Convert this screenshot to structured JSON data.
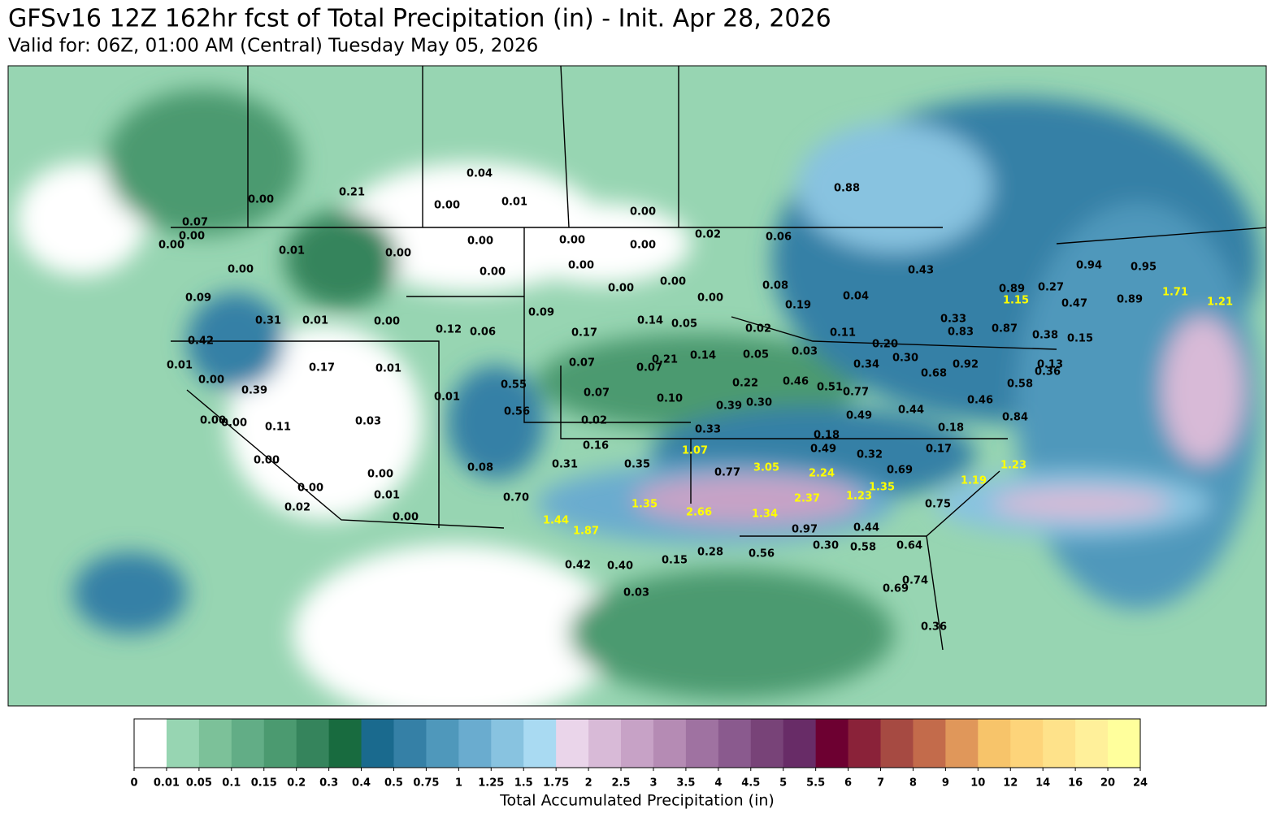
{
  "header": {
    "title": "GFSv16 12Z 162hr fcst of Total Precipitation (in) - Init. Apr 28, 2026",
    "subtitle": "Valid for: 06Z, 01:00 AM (Central) Tuesday May 05, 2026"
  },
  "colorbar": {
    "label": "Total Accumulated Precipitation (in)",
    "levels": [
      0,
      0.01,
      0.05,
      0.1,
      0.15,
      0.2,
      0.3,
      0.4,
      0.5,
      0.75,
      1,
      1.25,
      1.5,
      1.75,
      2,
      2.5,
      3,
      3.5,
      4,
      4.5,
      5,
      5.5,
      6,
      7,
      8,
      9,
      10,
      12,
      14,
      16,
      20,
      24
    ],
    "colors": [
      "#ffffff",
      "#97d5b2",
      "#7cc199",
      "#62ad86",
      "#4b9a70",
      "#35845c",
      "#186b3f",
      "#1a6a8e",
      "#3580a6",
      "#4f98bb",
      "#6aaccf",
      "#88c3e0",
      "#a9daf2",
      "#ead5ea",
      "#d8bad7",
      "#c7a2c6",
      "#b58bb4",
      "#9f72a1",
      "#8a5a8e",
      "#784378",
      "#682c67",
      "#6d0031",
      "#8a2239",
      "#a64a42",
      "#c36b4b",
      "#e0975a",
      "#f7c46a",
      "#fdd47a",
      "#fee28a",
      "#fff09a",
      "#ffff9c"
    ]
  },
  "map_labels": [
    {
      "text": "0.04",
      "color": "#000"
    },
    {
      "text": "0.00",
      "color": "#000"
    },
    {
      "text": "0.01",
      "color": "#000"
    },
    {
      "text": "0.00",
      "color": "#000"
    },
    {
      "text": "0.21",
      "color": "#000"
    },
    {
      "text": "0.00",
      "color": "#000"
    },
    {
      "text": "0.07",
      "color": "#000"
    },
    {
      "text": "0.00",
      "color": "#000"
    },
    {
      "text": "0.00",
      "color": "#000"
    },
    {
      "text": "0.01",
      "color": "#000"
    },
    {
      "text": "0.00",
      "color": "#000"
    },
    {
      "text": "0.00",
      "color": "#000"
    },
    {
      "text": "0.00",
      "color": "#000"
    },
    {
      "text": "0.00",
      "color": "#000"
    },
    {
      "text": "0.00",
      "color": "#000"
    },
    {
      "text": "0.00",
      "color": "#000"
    },
    {
      "text": "0.00",
      "color": "#000"
    },
    {
      "text": "0.00",
      "color": "#000"
    },
    {
      "text": "0.00",
      "color": "#000"
    },
    {
      "text": "0.00",
      "color": "#000"
    },
    {
      "text": "0.02",
      "color": "#000"
    },
    {
      "text": "0.06",
      "color": "#000"
    },
    {
      "text": "0.88",
      "color": "#000"
    },
    {
      "text": "0.43",
      "color": "#000"
    },
    {
      "text": "0.08",
      "color": "#000"
    },
    {
      "text": "0.19",
      "color": "#000"
    },
    {
      "text": "0.04",
      "color": "#000"
    },
    {
      "text": "0.09",
      "color": "#000"
    },
    {
      "text": "0.31",
      "color": "#000"
    },
    {
      "text": "0.01",
      "color": "#000"
    },
    {
      "text": "0.00",
      "color": "#000"
    },
    {
      "text": "0.12",
      "color": "#000"
    },
    {
      "text": "0.06",
      "color": "#000"
    },
    {
      "text": "0.09",
      "color": "#000"
    },
    {
      "text": "0.17",
      "color": "#000"
    },
    {
      "text": "0.14",
      "color": "#000"
    },
    {
      "text": "0.05",
      "color": "#000"
    },
    {
      "text": "0.02",
      "color": "#000"
    },
    {
      "text": "0.11",
      "color": "#000"
    },
    {
      "text": "0.42",
      "color": "#000"
    },
    {
      "text": "0.01",
      "color": "#000"
    },
    {
      "text": "0.17",
      "color": "#000"
    },
    {
      "text": "0.01",
      "color": "#000"
    },
    {
      "text": "0.07",
      "color": "#000"
    },
    {
      "text": "0.07",
      "color": "#000"
    },
    {
      "text": "0.21",
      "color": "#000"
    },
    {
      "text": "0.14",
      "color": "#000"
    },
    {
      "text": "0.05",
      "color": "#000"
    },
    {
      "text": "0.03",
      "color": "#000"
    },
    {
      "text": "0.34",
      "color": "#000"
    },
    {
      "text": "0.30",
      "color": "#000"
    },
    {
      "text": "0.20",
      "color": "#000"
    },
    {
      "text": "0.33",
      "color": "#000"
    },
    {
      "text": "0.83",
      "color": "#000"
    },
    {
      "text": "0.87",
      "color": "#000"
    },
    {
      "text": "0.89",
      "color": "#000"
    },
    {
      "text": "0.27",
      "color": "#000"
    },
    {
      "text": "0.94",
      "color": "#000"
    },
    {
      "text": "0.95",
      "color": "#000"
    },
    {
      "text": "0.47",
      "color": "#000"
    },
    {
      "text": "0.89",
      "color": "#000"
    },
    {
      "text": "1.71",
      "color": "#ff0"
    },
    {
      "text": "1.21",
      "color": "#ff0"
    },
    {
      "text": "1.15",
      "color": "#ff0"
    },
    {
      "text": "0.38",
      "color": "#000"
    },
    {
      "text": "0.15",
      "color": "#000"
    },
    {
      "text": "0.92",
      "color": "#000"
    },
    {
      "text": "0.68",
      "color": "#000"
    },
    {
      "text": "0.13",
      "color": "#000"
    },
    {
      "text": "0.36",
      "color": "#000"
    },
    {
      "text": "0.58",
      "color": "#000"
    },
    {
      "text": "0.46",
      "color": "#000"
    },
    {
      "text": "0.84",
      "color": "#000"
    },
    {
      "text": "0.00",
      "color": "#000"
    },
    {
      "text": "0.39",
      "color": "#000"
    },
    {
      "text": "0.55",
      "color": "#000"
    },
    {
      "text": "0.07",
      "color": "#000"
    },
    {
      "text": "0.10",
      "color": "#000"
    },
    {
      "text": "0.22",
      "color": "#000"
    },
    {
      "text": "0.46",
      "color": "#000"
    },
    {
      "text": "0.51",
      "color": "#000"
    },
    {
      "text": "0.77",
      "color": "#000"
    },
    {
      "text": "0.44",
      "color": "#000"
    },
    {
      "text": "0.49",
      "color": "#000"
    },
    {
      "text": "0.39",
      "color": "#000"
    },
    {
      "text": "0.30",
      "color": "#000"
    },
    {
      "text": "0.01",
      "color": "#000"
    },
    {
      "text": "0.56",
      "color": "#000"
    },
    {
      "text": "0.02",
      "color": "#000"
    },
    {
      "text": "0.03",
      "color": "#000"
    },
    {
      "text": "0.00",
      "color": "#000"
    },
    {
      "text": "0.00",
      "color": "#000"
    },
    {
      "text": "0.11",
      "color": "#000"
    },
    {
      "text": "0.33",
      "color": "#000"
    },
    {
      "text": "0.18",
      "color": "#000"
    },
    {
      "text": "0.18",
      "color": "#000"
    },
    {
      "text": "0.16",
      "color": "#000"
    },
    {
      "text": "1.07",
      "color": "#ff0"
    },
    {
      "text": "0.49",
      "color": "#000"
    },
    {
      "text": "0.32",
      "color": "#000"
    },
    {
      "text": "0.17",
      "color": "#000"
    },
    {
      "text": "0.31",
      "color": "#000"
    },
    {
      "text": "0.35",
      "color": "#000"
    },
    {
      "text": "0.77",
      "color": "#000"
    },
    {
      "text": "3.05",
      "color": "#ff0"
    },
    {
      "text": "2.24",
      "color": "#ff0"
    },
    {
      "text": "0.69",
      "color": "#000"
    },
    {
      "text": "1.23",
      "color": "#ff0"
    },
    {
      "text": "0.08",
      "color": "#000"
    },
    {
      "text": "0.00",
      "color": "#000"
    },
    {
      "text": "0.00",
      "color": "#000"
    },
    {
      "text": "1.19",
      "color": "#ff0"
    },
    {
      "text": "1.35",
      "color": "#ff0"
    },
    {
      "text": "2.37",
      "color": "#ff0"
    },
    {
      "text": "1.23",
      "color": "#ff0"
    },
    {
      "text": "0.00",
      "color": "#000"
    },
    {
      "text": "0.01",
      "color": "#000"
    },
    {
      "text": "0.70",
      "color": "#000"
    },
    {
      "text": "1.35",
      "color": "#ff0"
    },
    {
      "text": "2.66",
      "color": "#ff0"
    },
    {
      "text": "1.34",
      "color": "#ff0"
    },
    {
      "text": "0.75",
      "color": "#000"
    },
    {
      "text": "0.02",
      "color": "#000"
    },
    {
      "text": "0.00",
      "color": "#000"
    },
    {
      "text": "1.44",
      "color": "#ff0"
    },
    {
      "text": "1.87",
      "color": "#ff0"
    },
    {
      "text": "0.97",
      "color": "#000"
    },
    {
      "text": "0.44",
      "color": "#000"
    },
    {
      "text": "0.30",
      "color": "#000"
    },
    {
      "text": "0.58",
      "color": "#000"
    },
    {
      "text": "0.64",
      "color": "#000"
    },
    {
      "text": "0.28",
      "color": "#000"
    },
    {
      "text": "0.56",
      "color": "#000"
    },
    {
      "text": "0.15",
      "color": "#000"
    },
    {
      "text": "0.42",
      "color": "#000"
    },
    {
      "text": "0.40",
      "color": "#000"
    },
    {
      "text": "0.03",
      "color": "#000"
    },
    {
      "text": "0.74",
      "color": "#000"
    },
    {
      "text": "0.69",
      "color": "#000"
    },
    {
      "text": "0.36",
      "color": "#000"
    }
  ]
}
